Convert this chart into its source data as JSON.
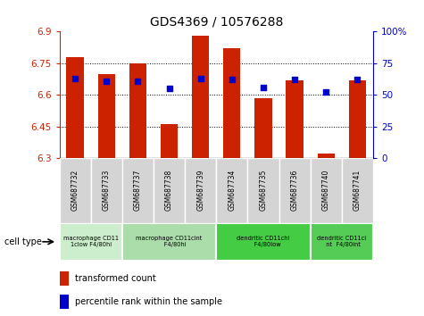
{
  "title": "GDS4369 / 10576288",
  "samples": [
    "GSM687732",
    "GSM687733",
    "GSM687737",
    "GSM687738",
    "GSM687739",
    "GSM687734",
    "GSM687735",
    "GSM687736",
    "GSM687740",
    "GSM687741"
  ],
  "bar_values": [
    6.78,
    6.7,
    6.75,
    6.46,
    6.88,
    6.82,
    6.585,
    6.67,
    6.32,
    6.67
  ],
  "dot_values": [
    63,
    61,
    61,
    55,
    63,
    62,
    56,
    62,
    52,
    62
  ],
  "ylim_left": [
    6.3,
    6.9
  ],
  "ylim_right": [
    0,
    100
  ],
  "yticks_left": [
    6.3,
    6.45,
    6.6,
    6.75,
    6.9
  ],
  "ytick_labels_left": [
    "6.3",
    "6.45",
    "6.6",
    "6.75",
    "6.9"
  ],
  "yticks_right": [
    0,
    25,
    50,
    75,
    100
  ],
  "ytick_labels_right": [
    "0",
    "25",
    "50",
    "75",
    "100%"
  ],
  "hlines": [
    6.45,
    6.6,
    6.75
  ],
  "bar_color": "#cc2200",
  "dot_color": "#0000cc",
  "bar_bottom": 6.3,
  "cell_type_groups": [
    {
      "label": "macrophage CD11low F4/80hi",
      "start": 0,
      "end": 2,
      "color": "#cceecc"
    },
    {
      "label": "macrophage CD11cint\nF4/80hi",
      "start": 2,
      "end": 5,
      "color": "#aaddaa"
    },
    {
      "label": "dendritic CD11chi\nF4/80low",
      "start": 5,
      "end": 8,
      "color": "#44cc44"
    },
    {
      "label": "dendritic CD11cint\nF4/80int",
      "start": 8,
      "end": 10,
      "color": "#55cc55"
    }
  ],
  "legend_label_red": "transformed count",
  "legend_label_blue": "percentile rank within the sample",
  "cell_type_label": "cell type"
}
